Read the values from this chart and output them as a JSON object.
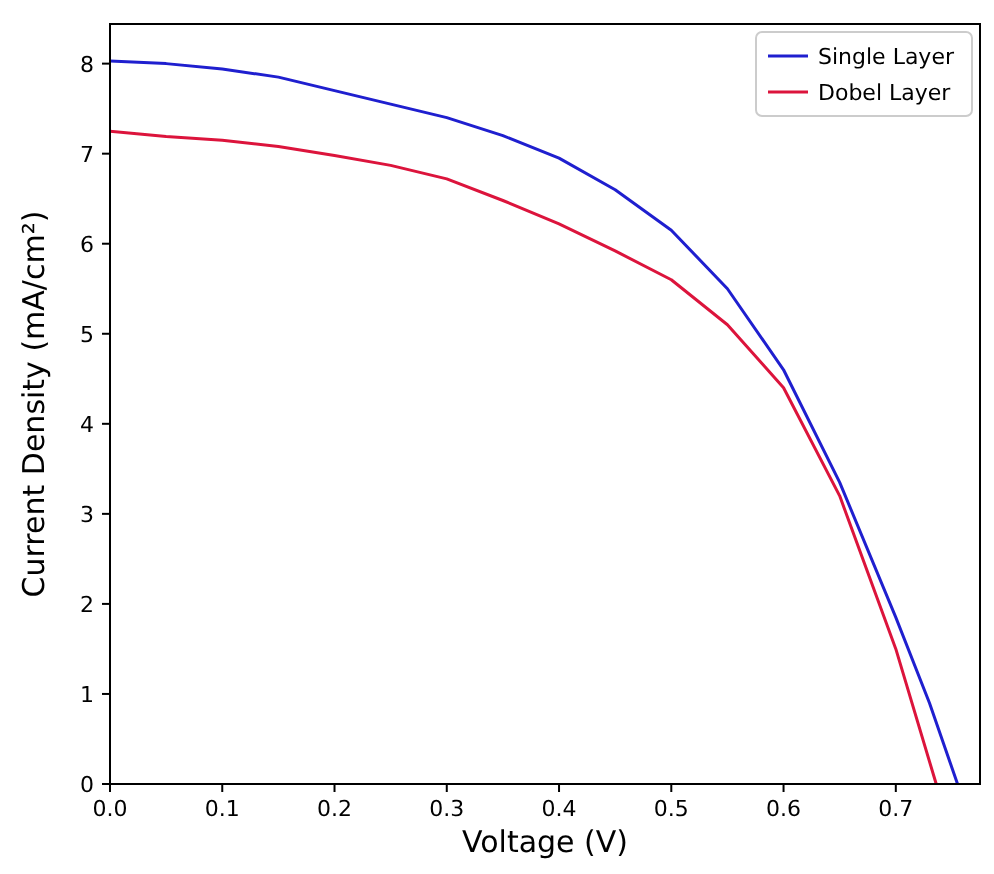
{
  "chart_data": {
    "type": "line",
    "xlabel": "Voltage (V)",
    "ylabel": "Current Density (mA/cm²)",
    "xlim": [
      0,
      0.775
    ],
    "ylim": [
      0,
      8.44
    ],
    "xticks": [
      {
        "value": 0,
        "label": "0.0"
      },
      {
        "value": 0.1,
        "label": "0.1"
      },
      {
        "value": 0.2,
        "label": "0.2"
      },
      {
        "value": 0.3,
        "label": "0.3"
      },
      {
        "value": 0.4,
        "label": "0.4"
      },
      {
        "value": 0.5,
        "label": "0.5"
      },
      {
        "value": 0.6,
        "label": "0.6"
      },
      {
        "value": 0.7,
        "label": "0.7"
      }
    ],
    "yticks": [
      0,
      1,
      2,
      3,
      4,
      5,
      6,
      7,
      8
    ],
    "legend": "top right",
    "grid": false,
    "marker": "none",
    "line_style": "solid",
    "x": [
      0,
      0.05,
      0.1,
      0.15,
      0.2,
      0.25,
      0.3,
      0.35,
      0.4,
      0.45,
      0.5,
      0.55,
      0.6,
      0.65,
      0.7,
      0.73,
      0.755
    ],
    "series": [
      {
        "name": "Single Layer",
        "color": "#1f1fcf",
        "values": [
          8.03,
          8.0,
          7.94,
          7.85,
          7.7,
          7.55,
          7.4,
          7.2,
          6.95,
          6.6,
          6.15,
          5.5,
          4.6,
          3.35,
          1.85,
          0.9,
          0
        ]
      },
      {
        "name": "Dobel Layer",
        "color": "#dc143c",
        "x": [
          0,
          0.05,
          0.1,
          0.15,
          0.2,
          0.25,
          0.3,
          0.35,
          0.4,
          0.45,
          0.5,
          0.55,
          0.6,
          0.65,
          0.7,
          0.736
        ],
        "values": [
          7.25,
          7.19,
          7.15,
          7.08,
          6.98,
          6.87,
          6.72,
          6.48,
          6.22,
          5.92,
          5.6,
          5.1,
          4.4,
          3.2,
          1.5,
          0
        ]
      }
    ]
  }
}
